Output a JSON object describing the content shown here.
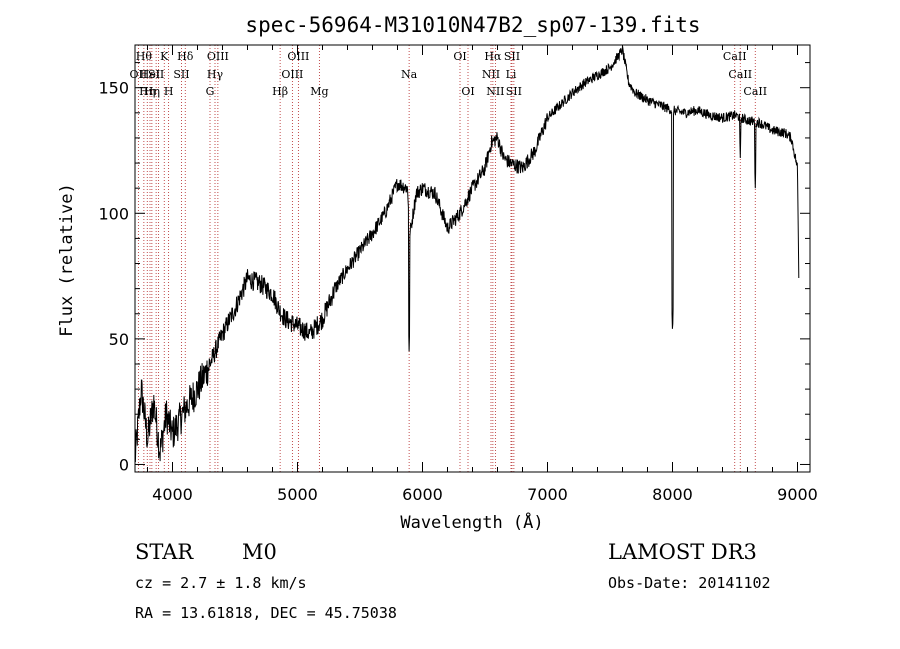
{
  "chart_data": {
    "type": "line",
    "title": "spec-56964-M31010N47B2_sp07-139.fits",
    "xlabel": "Wavelength (Å)",
    "ylabel": "Flux (relative)",
    "xlim": [
      3700,
      9100
    ],
    "ylim": [
      -3,
      167
    ],
    "x_ticks": [
      4000,
      5000,
      6000,
      7000,
      8000,
      9000
    ],
    "y_ticks": [
      0,
      50,
      100,
      150
    ],
    "color": "#000000",
    "line_marker_color": "#b22222",
    "series": [
      {
        "name": "flux",
        "anchors": [
          [
            3700,
            2
          ],
          [
            3750,
            30
          ],
          [
            3800,
            10
          ],
          [
            3850,
            25
          ],
          [
            3900,
            5
          ],
          [
            3950,
            20
          ],
          [
            4000,
            12
          ],
          [
            4100,
            22
          ],
          [
            4200,
            30
          ],
          [
            4300,
            40
          ],
          [
            4400,
            52
          ],
          [
            4500,
            62
          ],
          [
            4600,
            74
          ],
          [
            4700,
            72
          ],
          [
            4800,
            68
          ],
          [
            4850,
            62
          ],
          [
            4900,
            58
          ],
          [
            5000,
            55
          ],
          [
            5100,
            52
          ],
          [
            5200,
            58
          ],
          [
            5300,
            70
          ],
          [
            5400,
            78
          ],
          [
            5500,
            85
          ],
          [
            5600,
            92
          ],
          [
            5700,
            100
          ],
          [
            5800,
            112
          ],
          [
            5880,
            110
          ],
          [
            5900,
            92
          ],
          [
            5950,
            108
          ],
          [
            6000,
            110
          ],
          [
            6100,
            108
          ],
          [
            6200,
            94
          ],
          [
            6300,
            100
          ],
          [
            6400,
            110
          ],
          [
            6500,
            118
          ],
          [
            6550,
            128
          ],
          [
            6600,
            130
          ],
          [
            6650,
            122
          ],
          [
            6700,
            120
          ],
          [
            6800,
            118
          ],
          [
            6900,
            125
          ],
          [
            7000,
            138
          ],
          [
            7100,
            143
          ],
          [
            7200,
            148
          ],
          [
            7300,
            152
          ],
          [
            7400,
            155
          ],
          [
            7500,
            158
          ],
          [
            7600,
            165
          ],
          [
            7650,
            152
          ],
          [
            7700,
            148
          ],
          [
            7800,
            145
          ],
          [
            7900,
            143
          ],
          [
            8000,
            141
          ],
          [
            8100,
            140
          ],
          [
            8200,
            141
          ],
          [
            8300,
            139
          ],
          [
            8400,
            138
          ],
          [
            8500,
            139
          ],
          [
            8600,
            137
          ],
          [
            8700,
            136
          ],
          [
            8800,
            133
          ],
          [
            8900,
            132
          ],
          [
            8950,
            130
          ],
          [
            9000,
            118
          ],
          [
            9010,
            75
          ]
        ],
        "dips": [
          {
            "x": 5893,
            "y": 45
          },
          {
            "x": 8000,
            "y": 52
          },
          {
            "x": 8662,
            "y": 110
          },
          {
            "x": 8542,
            "y": 122
          }
        ]
      }
    ],
    "lines": [
      {
        "x": 3771,
        "label": "Hθ",
        "row": 0
      },
      {
        "x": 3727,
        "label": "OII",
        "row": 1
      },
      {
        "x": 3798,
        "label": "Hη",
        "row": 2
      },
      {
        "x": 3820,
        "label": "HeI",
        "row": 1
      },
      {
        "x": 3835,
        "label": "Hη",
        "row": 2
      },
      {
        "x": 3869,
        "label": "SII",
        "row": 1
      },
      {
        "x": 3889,
        "label": "",
        "row": 0
      },
      {
        "x": 3934,
        "label": "K",
        "row": 0
      },
      {
        "x": 3969,
        "label": "H",
        "row": 2
      },
      {
        "x": 4072,
        "label": "SII",
        "row": 1
      },
      {
        "x": 4102,
        "label": "Hδ",
        "row": 0
      },
      {
        "x": 4300,
        "label": "G",
        "row": 2
      },
      {
        "x": 4340,
        "label": "Hγ",
        "row": 1
      },
      {
        "x": 4363,
        "label": "OIII",
        "row": 0
      },
      {
        "x": 4861,
        "label": "Hβ",
        "row": 2
      },
      {
        "x": 4959,
        "label": "OIII",
        "row": 1
      },
      {
        "x": 5007,
        "label": "OIII",
        "row": 0
      },
      {
        "x": 5175,
        "label": "Mg",
        "row": 2
      },
      {
        "x": 5893,
        "label": "Na",
        "row": 1
      },
      {
        "x": 6300,
        "label": "OI",
        "row": 0
      },
      {
        "x": 6364,
        "label": "OI",
        "row": 2
      },
      {
        "x": 6548,
        "label": "NII",
        "row": 1
      },
      {
        "x": 6563,
        "label": "Hα",
        "row": 0
      },
      {
        "x": 6583,
        "label": "NII",
        "row": 2
      },
      {
        "x": 6708,
        "label": "Li",
        "row": 1
      },
      {
        "x": 6716,
        "label": "SII",
        "row": 0
      },
      {
        "x": 6731,
        "label": "SII",
        "row": 2
      },
      {
        "x": 8498,
        "label": "CaII",
        "row": 0
      },
      {
        "x": 8542,
        "label": "CaII",
        "row": 1
      },
      {
        "x": 8662,
        "label": "CaII",
        "row": 2
      }
    ]
  },
  "info": {
    "class_label": "STAR",
    "subclass": "M0",
    "survey": "LAMOST DR3",
    "cz": "cz = 2.7 ± 1.8 km/s",
    "obs_date": "Obs-Date: 20141102",
    "coords": "RA =  13.61818, DEC =  45.75038"
  }
}
